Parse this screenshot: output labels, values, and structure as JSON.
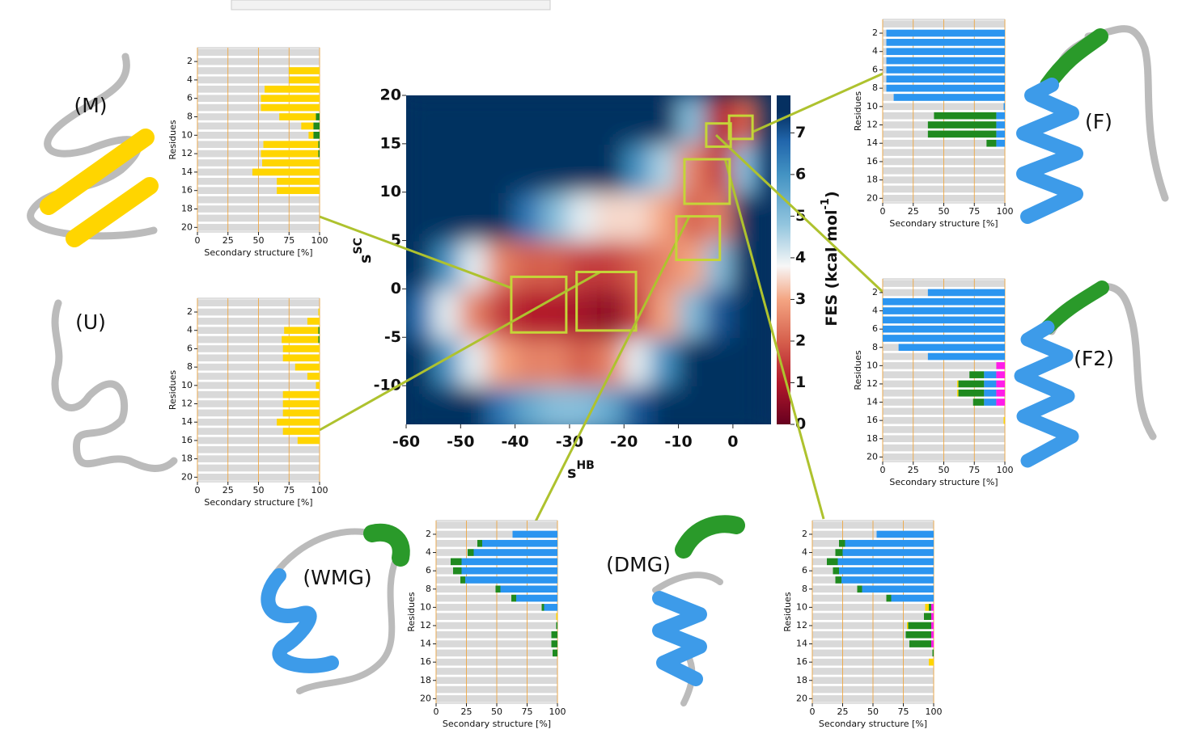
{
  "chart_data": [
    {
      "type": "heatmap",
      "xlabel": "s",
      "xlabel_sup": "HB",
      "ylabel": "s",
      "ylabel_sup": "SC",
      "colorbar_label": "FES (kcal mol",
      "colorbar_label_sup": "-1",
      "colorbar_label_tail": ")",
      "xlim": [
        -60,
        7
      ],
      "ylim": [
        -14,
        20
      ],
      "xticks": [
        -60,
        -50,
        -40,
        -30,
        -20,
        -10,
        0
      ],
      "yticks": [
        -10,
        -5,
        0,
        5,
        10,
        15,
        20
      ],
      "clim": [
        0,
        7.9
      ],
      "cticks": [
        0,
        1,
        2,
        3,
        4,
        5,
        6,
        7
      ],
      "colorscale": [
        [
          0,
          "#67001f"
        ],
        [
          1,
          "#b2182b"
        ],
        [
          2,
          "#d6604d"
        ],
        [
          3,
          "#f4a582"
        ],
        [
          3.8,
          "#f7f7f7"
        ],
        [
          4.8,
          "#92c5de"
        ],
        [
          6,
          "#4393c3"
        ],
        [
          6.8,
          "#2166ac"
        ],
        [
          7.5,
          "#053061"
        ]
      ],
      "x": [
        -57.5,
        -52.5,
        -47.5,
        -42.5,
        -37.5,
        -32.5,
        -27.5,
        -22.5,
        -17.5,
        -12.5,
        -7.5,
        -2.5,
        2.5
      ],
      "y": [
        -12.5,
        -7.5,
        -2.5,
        2.5,
        7.5,
        12.5,
        17.5
      ],
      "z": [
        [
          7.5,
          7.5,
          7.5,
          6.5,
          5.5,
          5,
          5,
          5.5,
          7,
          7.5,
          7.5,
          7.5,
          7.5
        ],
        [
          7.5,
          6,
          4,
          3,
          2.5,
          2.5,
          2,
          2.5,
          4,
          6,
          7.5,
          7.5,
          7.5
        ],
        [
          6.5,
          4,
          2.5,
          1.5,
          1,
          1,
          0.8,
          0.5,
          1.5,
          3,
          5,
          7,
          7.5
        ],
        [
          7.5,
          6,
          4,
          2.5,
          2,
          2,
          1.5,
          1.5,
          2,
          2.5,
          3,
          5,
          7.5
        ],
        [
          7.5,
          7.5,
          7.5,
          7.5,
          6.5,
          5,
          4,
          3.5,
          3.5,
          3,
          2,
          2.5,
          7.5
        ],
        [
          7.5,
          7.5,
          7.5,
          7.5,
          7.5,
          7.5,
          7.5,
          7.5,
          6,
          4.5,
          2.5,
          1.5,
          5
        ],
        [
          7.5,
          7.5,
          7.5,
          7.5,
          7.5,
          7.5,
          7.5,
          7.5,
          7.5,
          7.5,
          5,
          1,
          2
        ]
      ],
      "regions": [
        {
          "x": [
            -40.7,
            -30.6
          ],
          "y": [
            -4.5,
            1.25
          ]
        },
        {
          "x": [
            -28.7,
            -17.8
          ],
          "y": [
            -4.3,
            1.75
          ]
        },
        {
          "x": [
            -0.7,
            3.6
          ],
          "y": [
            15.5,
            17.9
          ]
        },
        {
          "x": [
            -4.9,
            -0.4
          ],
          "y": [
            14.7,
            17.1
          ]
        },
        {
          "x": [
            -10.4,
            -2.4
          ],
          "y": [
            3,
            7.5
          ]
        },
        {
          "x": [
            -8.9,
            -0.6
          ],
          "y": [
            8.8,
            13.4
          ]
        }
      ],
      "box_color": "#c5d438"
    },
    {
      "type": "barh",
      "label": "(M)",
      "ylabel": "Residues",
      "xlabel": "Secondary structure [%]",
      "categories": [
        null,
        2,
        null,
        4,
        null,
        6,
        null,
        8,
        null,
        10,
        null,
        12,
        null,
        14,
        null,
        16,
        null,
        18,
        null,
        20
      ],
      "xlim": [
        0,
        100
      ],
      "xticks": [
        0,
        25,
        50,
        75,
        100
      ],
      "grid": true,
      "grid_color": "#f0a030",
      "series": [
        {
          "color": "#ffd500",
          "values": [
            0,
            0,
            25,
            25,
            45,
            48,
            48,
            30,
            10,
            4,
            45,
            47,
            47,
            55,
            35,
            35,
            0,
            0,
            0,
            0
          ]
        },
        {
          "color": "#1f8a1f",
          "values": [
            0,
            0,
            0,
            0,
            0,
            0,
            0,
            3,
            5,
            5,
            1,
            1,
            0,
            0,
            0,
            0,
            0,
            0,
            0,
            0
          ]
        }
      ]
    },
    {
      "type": "barh",
      "label": "(U)",
      "ylabel": "Residues",
      "xlabel": "Secondary structure [%]",
      "categories": [
        null,
        2,
        null,
        4,
        null,
        6,
        null,
        8,
        null,
        10,
        null,
        12,
        null,
        14,
        null,
        16,
        null,
        18,
        null,
        20
      ],
      "xlim": [
        0,
        100
      ],
      "xticks": [
        0,
        25,
        50,
        75,
        100
      ],
      "grid": true,
      "grid_color": "#f0a030",
      "series": [
        {
          "color": "#ffd500",
          "values": [
            0,
            1,
            10,
            28,
            30,
            30,
            30,
            20,
            10,
            3,
            30,
            30,
            30,
            35,
            30,
            18,
            0,
            0,
            0,
            0
          ]
        },
        {
          "color": "#1f8a1f",
          "values": [
            0,
            0,
            0,
            1,
            1,
            0,
            0,
            0,
            0,
            0,
            0,
            0,
            0,
            0,
            0,
            0,
            0,
            0,
            0,
            0
          ]
        }
      ]
    },
    {
      "type": "barh",
      "label": "(F)",
      "ylabel": "Residues",
      "xlabel": "Secondary structure [%]",
      "categories": [
        null,
        2,
        null,
        4,
        null,
        6,
        null,
        8,
        null,
        10,
        null,
        12,
        null,
        14,
        null,
        16,
        null,
        18,
        null,
        20
      ],
      "xlim": [
        0,
        100
      ],
      "xticks": [
        0,
        25,
        50,
        75,
        100
      ],
      "grid": true,
      "grid_color": "#f0a030",
      "series": [
        {
          "color": "#1f8a1f",
          "values": [
            0,
            0,
            0,
            0,
            0,
            0,
            0,
            0,
            0,
            0,
            51,
            56,
            56,
            8,
            0,
            0,
            0,
            0,
            0,
            0
          ]
        },
        {
          "color": "#2b95f0",
          "values": [
            0,
            97,
            97,
            97,
            97,
            97,
            97,
            97,
            91,
            1,
            7,
            7,
            7,
            7,
            0,
            0,
            0,
            0,
            0,
            0
          ]
        }
      ]
    },
    {
      "type": "barh",
      "label": "(F2)",
      "ylabel": "Residues",
      "xlabel": "Secondary structure [%]",
      "categories": [
        null,
        2,
        null,
        4,
        null,
        6,
        null,
        8,
        null,
        10,
        null,
        12,
        null,
        14,
        null,
        16,
        null,
        18,
        null,
        20
      ],
      "xlim": [
        0,
        100
      ],
      "xticks": [
        0,
        25,
        50,
        75,
        100
      ],
      "grid": true,
      "grid_color": "#f0a030",
      "series": [
        {
          "color": "#ffd500",
          "values": [
            0,
            0,
            0,
            0,
            0,
            0,
            0,
            0,
            0,
            0,
            0,
            1,
            1,
            0,
            0,
            1,
            0,
            0,
            0,
            0
          ]
        },
        {
          "color": "#1f8a1f",
          "values": [
            0,
            0,
            0,
            0,
            0,
            0,
            0,
            0,
            0,
            0,
            12,
            21,
            21,
            9,
            0,
            0,
            0,
            0,
            0,
            0
          ]
        },
        {
          "color": "#2b95f0",
          "values": [
            0,
            63,
            100,
            100,
            100,
            100,
            100,
            87,
            63,
            0,
            10,
            10,
            10,
            10,
            0,
            0,
            0,
            0,
            0,
            0
          ]
        },
        {
          "color": "#ff1ce8",
          "values": [
            0,
            0,
            0,
            0,
            0,
            0,
            0,
            0,
            0,
            7,
            7,
            7,
            7,
            7,
            0,
            0,
            0,
            0,
            0,
            0
          ]
        }
      ]
    },
    {
      "type": "barh",
      "label": "(WMG)",
      "ylabel": "Residues",
      "xlabel": "Secondary structure [%]",
      "categories": [
        null,
        2,
        null,
        4,
        null,
        6,
        null,
        8,
        null,
        10,
        null,
        12,
        null,
        14,
        null,
        16,
        null,
        18,
        null,
        20
      ],
      "xlim": [
        0,
        100
      ],
      "xticks": [
        0,
        25,
        50,
        75,
        100
      ],
      "grid": true,
      "grid_color": "#f0a030",
      "series": [
        {
          "color": "#ffd500",
          "values": [
            0,
            0,
            0,
            0,
            0,
            0,
            0,
            0,
            0,
            0,
            1,
            0,
            0,
            0,
            0,
            0,
            0,
            0,
            0,
            0
          ]
        },
        {
          "color": "#1f8a1f",
          "values": [
            0,
            0,
            4,
            5,
            9,
            7,
            4,
            4,
            4,
            2,
            0,
            1,
            5,
            5,
            4,
            0,
            0,
            0,
            0,
            0
          ]
        },
        {
          "color": "#2b95f0",
          "values": [
            0,
            37,
            62,
            69,
            79,
            79,
            76,
            47,
            34,
            11,
            0,
            0,
            0,
            0,
            0,
            0,
            0,
            0,
            0,
            0
          ]
        }
      ]
    },
    {
      "type": "barh",
      "label": "(DMG)",
      "ylabel": "Residues",
      "xlabel": "Secondary structure [%]",
      "categories": [
        null,
        2,
        null,
        4,
        null,
        6,
        null,
        8,
        null,
        10,
        null,
        12,
        null,
        14,
        null,
        16,
        null,
        18,
        null,
        20
      ],
      "xlim": [
        0,
        100
      ],
      "xticks": [
        0,
        25,
        50,
        75,
        100
      ],
      "grid": true,
      "grid_color": "#f0a030",
      "series": [
        {
          "color": "#ffd500",
          "values": [
            0,
            0,
            0,
            0,
            0,
            0,
            0,
            0,
            0,
            3,
            0,
            1,
            0,
            0,
            0,
            4,
            0,
            0,
            0,
            0
          ]
        },
        {
          "color": "#1f8a1f",
          "values": [
            0,
            0,
            5,
            6,
            9,
            5,
            5,
            4,
            4,
            2,
            6,
            19,
            21,
            18,
            1,
            0,
            0,
            0,
            0,
            0
          ]
        },
        {
          "color": "#2b95f0",
          "values": [
            0,
            47,
            73,
            75,
            79,
            78,
            76,
            59,
            35,
            0,
            0,
            0,
            0,
            0,
            0,
            0,
            0,
            0,
            0,
            0
          ]
        },
        {
          "color": "#ff1ce8",
          "values": [
            0,
            0,
            0,
            0,
            0,
            0,
            0,
            0,
            0,
            2,
            2,
            2,
            2,
            2,
            0,
            0,
            0,
            0,
            0,
            0
          ]
        }
      ]
    }
  ]
}
